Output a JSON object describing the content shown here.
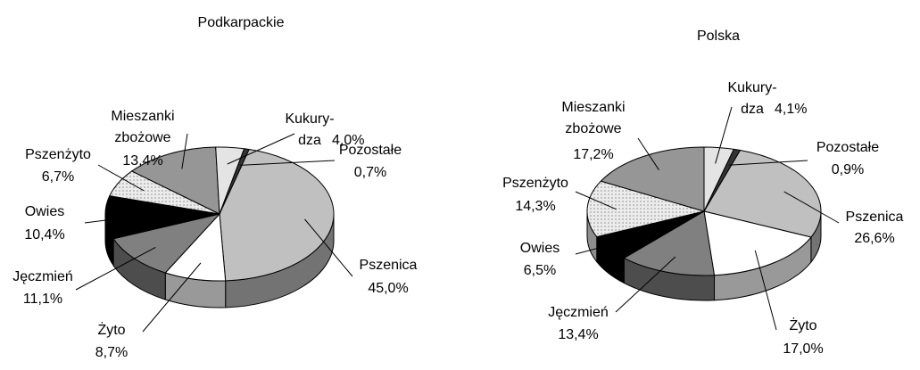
{
  "chart_data": [
    {
      "type": "pie",
      "title": "Podkarpackie",
      "categories": [
        "Pszenica",
        "Żyto",
        "Jęczmień",
        "Owies",
        "Pszenżyto",
        "Mieszanki\nzbożowe",
        "Kukury-\ndza",
        "Pozostałe"
      ],
      "values": [
        45.0,
        8.7,
        11.1,
        10.4,
        6.7,
        13.4,
        4.0,
        0.7
      ],
      "value_labels": [
        "45,0%",
        "8,7%",
        "11,1%",
        "10,4%",
        "6,7%",
        "13,4%",
        "4,0%",
        "0,7%"
      ],
      "colors": [
        "#c0c0c0",
        "#ffffff",
        "#808080",
        "#000000",
        "#ececec",
        "#969696",
        "#e4e4e4",
        "#333333"
      ]
    },
    {
      "type": "pie",
      "title": "Polska",
      "categories": [
        "Pszenica",
        "Żyto",
        "Jęczmień",
        "Owies",
        "Pszenżyto",
        "Mieszanki\nzbożowe",
        "Kukury-\ndza",
        "Pozostałe"
      ],
      "values": [
        26.6,
        17.0,
        13.4,
        6.5,
        14.3,
        17.2,
        4.1,
        0.9
      ],
      "value_labels": [
        "26,6%",
        "17,0%",
        "13,4%",
        "6,5%",
        "14,3%",
        "17,2%",
        "4,1%",
        "0,9%"
      ],
      "colors": [
        "#c0c0c0",
        "#ffffff",
        "#808080",
        "#000000",
        "#ececec",
        "#969696",
        "#e4e4e4",
        "#333333"
      ]
    }
  ]
}
